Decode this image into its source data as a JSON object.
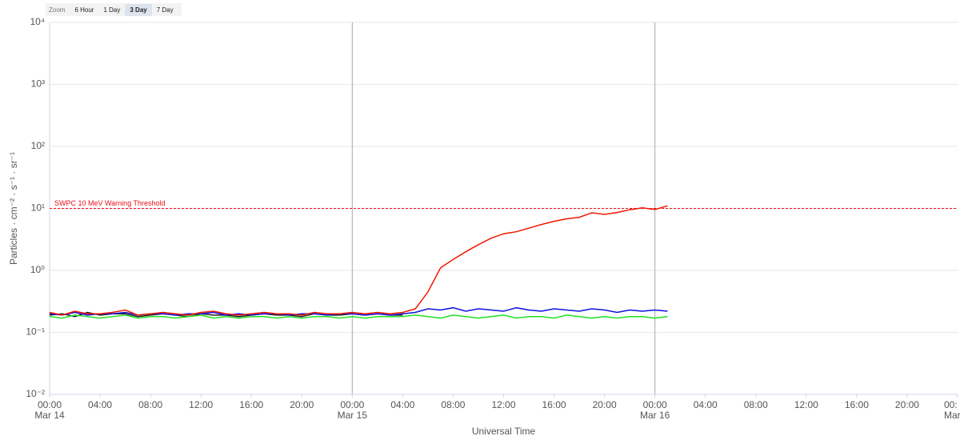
{
  "zoom": {
    "label": "Zoom",
    "buttons": [
      "6 Hour",
      "1 Day",
      "3 Day",
      "7 Day"
    ],
    "selected": 2
  },
  "chart_data": {
    "type": "line",
    "y_label": "Particles · cm⁻² · s⁻¹ · sr⁻¹",
    "x_label": "Universal Time",
    "log_y": true,
    "grid": true,
    "ylim": [
      0.01,
      10000
    ],
    "yticks": [
      {
        "value": 0.01,
        "label": "10⁻²"
      },
      {
        "value": 0.1,
        "label": "10⁻¹"
      },
      {
        "value": 1,
        "label": "10⁰"
      },
      {
        "value": 10,
        "label": "10¹"
      },
      {
        "value": 100,
        "label": "10²"
      },
      {
        "value": 1000,
        "label": "10³"
      },
      {
        "value": 10000,
        "label": "10⁴"
      }
    ],
    "xlim": [
      0,
      72
    ],
    "xticks": [
      {
        "value": 0,
        "label": "00:00"
      },
      {
        "value": 4,
        "label": "04:00"
      },
      {
        "value": 8,
        "label": "08:00"
      },
      {
        "value": 12,
        "label": "12:00"
      },
      {
        "value": 16,
        "label": "16:00"
      },
      {
        "value": 20,
        "label": "20:00"
      },
      {
        "value": 24,
        "label": "00:00"
      },
      {
        "value": 28,
        "label": "04:00"
      },
      {
        "value": 32,
        "label": "08:00"
      },
      {
        "value": 36,
        "label": "12:00"
      },
      {
        "value": 40,
        "label": "16:00"
      },
      {
        "value": 44,
        "label": "20:00"
      },
      {
        "value": 48,
        "label": "00:00"
      },
      {
        "value": 52,
        "label": "04:00"
      },
      {
        "value": 56,
        "label": "08:00"
      },
      {
        "value": 60,
        "label": "12:00"
      },
      {
        "value": 64,
        "label": "16:00"
      },
      {
        "value": 68,
        "label": "20:00"
      },
      {
        "value": 72,
        "label": "00:"
      }
    ],
    "xtick_dates": [
      {
        "value": 0,
        "label": "Mar 14"
      },
      {
        "value": 24,
        "label": "Mar 15"
      },
      {
        "value": 48,
        "label": "Mar 16"
      },
      {
        "value": 72,
        "label": "Mar"
      }
    ],
    "threshold": {
      "value": 10,
      "label": "SWPC 10 MeV Warning Threshold",
      "color": "#e8101a"
    },
    "x": [
      0,
      1,
      2,
      3,
      4,
      5,
      6,
      7,
      8,
      9,
      10,
      11,
      12,
      13,
      14,
      15,
      16,
      17,
      18,
      19,
      20,
      21,
      22,
      23,
      24,
      25,
      26,
      27,
      28,
      29,
      30,
      31,
      32,
      33,
      34,
      35,
      36,
      37,
      38,
      39,
      40,
      41,
      42,
      43,
      44,
      45,
      46,
      47,
      48,
      49
    ],
    "series": [
      {
        "color": "#222222",
        "values": [
          0.19,
          0.2,
          0.18,
          0.21,
          0.19,
          0.2,
          0.2,
          0.18,
          0.19,
          0.2,
          0.19,
          0.18,
          0.2,
          0.19,
          0.19,
          0.18,
          0.19,
          0.2,
          0.19,
          0.19,
          0.18,
          0.2,
          0.19,
          0.19,
          0.2,
          0.19,
          0.2,
          0.19,
          0.19,
          null,
          null,
          null,
          null,
          null,
          null,
          null,
          null,
          null,
          null,
          null,
          null,
          null,
          null,
          null,
          null,
          null,
          null,
          null,
          null,
          null
        ]
      },
      {
        "color": "#1010e0",
        "values": [
          0.2,
          0.19,
          0.21,
          0.19,
          0.2,
          0.2,
          0.21,
          0.19,
          0.2,
          0.2,
          0.19,
          0.2,
          0.2,
          0.21,
          0.19,
          0.2,
          0.19,
          0.2,
          0.2,
          0.19,
          0.2,
          0.2,
          0.19,
          0.2,
          0.2,
          0.19,
          0.2,
          0.19,
          0.2,
          0.21,
          0.24,
          0.23,
          0.25,
          0.22,
          0.24,
          0.23,
          0.22,
          0.25,
          0.23,
          0.22,
          0.24,
          0.23,
          0.22,
          0.24,
          0.23,
          0.21,
          0.23,
          0.22,
          0.23,
          0.22
        ]
      },
      {
        "color": "#22e022",
        "values": [
          0.18,
          0.17,
          0.19,
          0.18,
          0.17,
          0.18,
          0.19,
          0.17,
          0.18,
          0.18,
          0.17,
          0.18,
          0.19,
          0.17,
          0.18,
          0.17,
          0.18,
          0.18,
          0.17,
          0.18,
          0.17,
          0.18,
          0.18,
          0.17,
          0.18,
          0.17,
          0.18,
          0.18,
          0.18,
          0.19,
          0.18,
          0.17,
          0.19,
          0.18,
          0.17,
          0.18,
          0.19,
          0.17,
          0.18,
          0.18,
          0.17,
          0.19,
          0.18,
          0.17,
          0.18,
          0.17,
          0.18,
          0.18,
          0.17,
          0.18
        ]
      },
      {
        "color": "#f01800",
        "values": [
          0.21,
          0.19,
          0.22,
          0.2,
          0.2,
          0.21,
          0.23,
          0.19,
          0.2,
          0.21,
          0.2,
          0.19,
          0.21,
          0.22,
          0.2,
          0.19,
          0.2,
          0.21,
          0.2,
          0.2,
          0.19,
          0.21,
          0.2,
          0.2,
          0.21,
          0.2,
          0.21,
          0.2,
          0.21,
          0.24,
          0.45,
          1.1,
          1.5,
          2.0,
          2.6,
          3.3,
          3.9,
          4.2,
          4.8,
          5.5,
          6.2,
          6.8,
          7.2,
          8.5,
          8.0,
          8.6,
          9.5,
          10.2,
          9.6,
          11
        ]
      }
    ]
  }
}
